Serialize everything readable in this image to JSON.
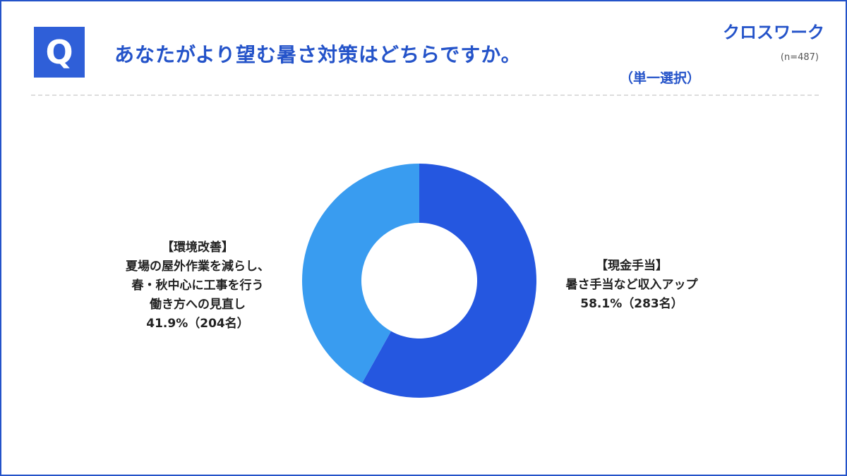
{
  "header": {
    "badge": "Q",
    "question": "あなたがより望む暑さ対策はどちらですか。",
    "logo": "クロスワーク",
    "sample_size": "(n=487)",
    "answer_type": "（単一選択）"
  },
  "colors": {
    "brand_blue": "#2453c9",
    "badge_blue": "#2f5fd8",
    "slice_cash": "#2557e0",
    "slice_env": "#399cf0"
  },
  "chart_data": {
    "type": "pie",
    "donut": true,
    "slices": [
      {
        "key": "cash",
        "lines": [
          "【現金手当】",
          "暑さ手当など収入アップ"
        ],
        "value": 58.1,
        "count": 283,
        "value_label": "58.1%（283名）"
      },
      {
        "key": "env",
        "lines": [
          "【環境改善】",
          "夏場の屋外作業を減らし、",
          "春・秋中心に工事を行う",
          "働き方への見直し"
        ],
        "value": 41.9,
        "count": 204,
        "value_label": "41.9%（204名）"
      }
    ]
  }
}
